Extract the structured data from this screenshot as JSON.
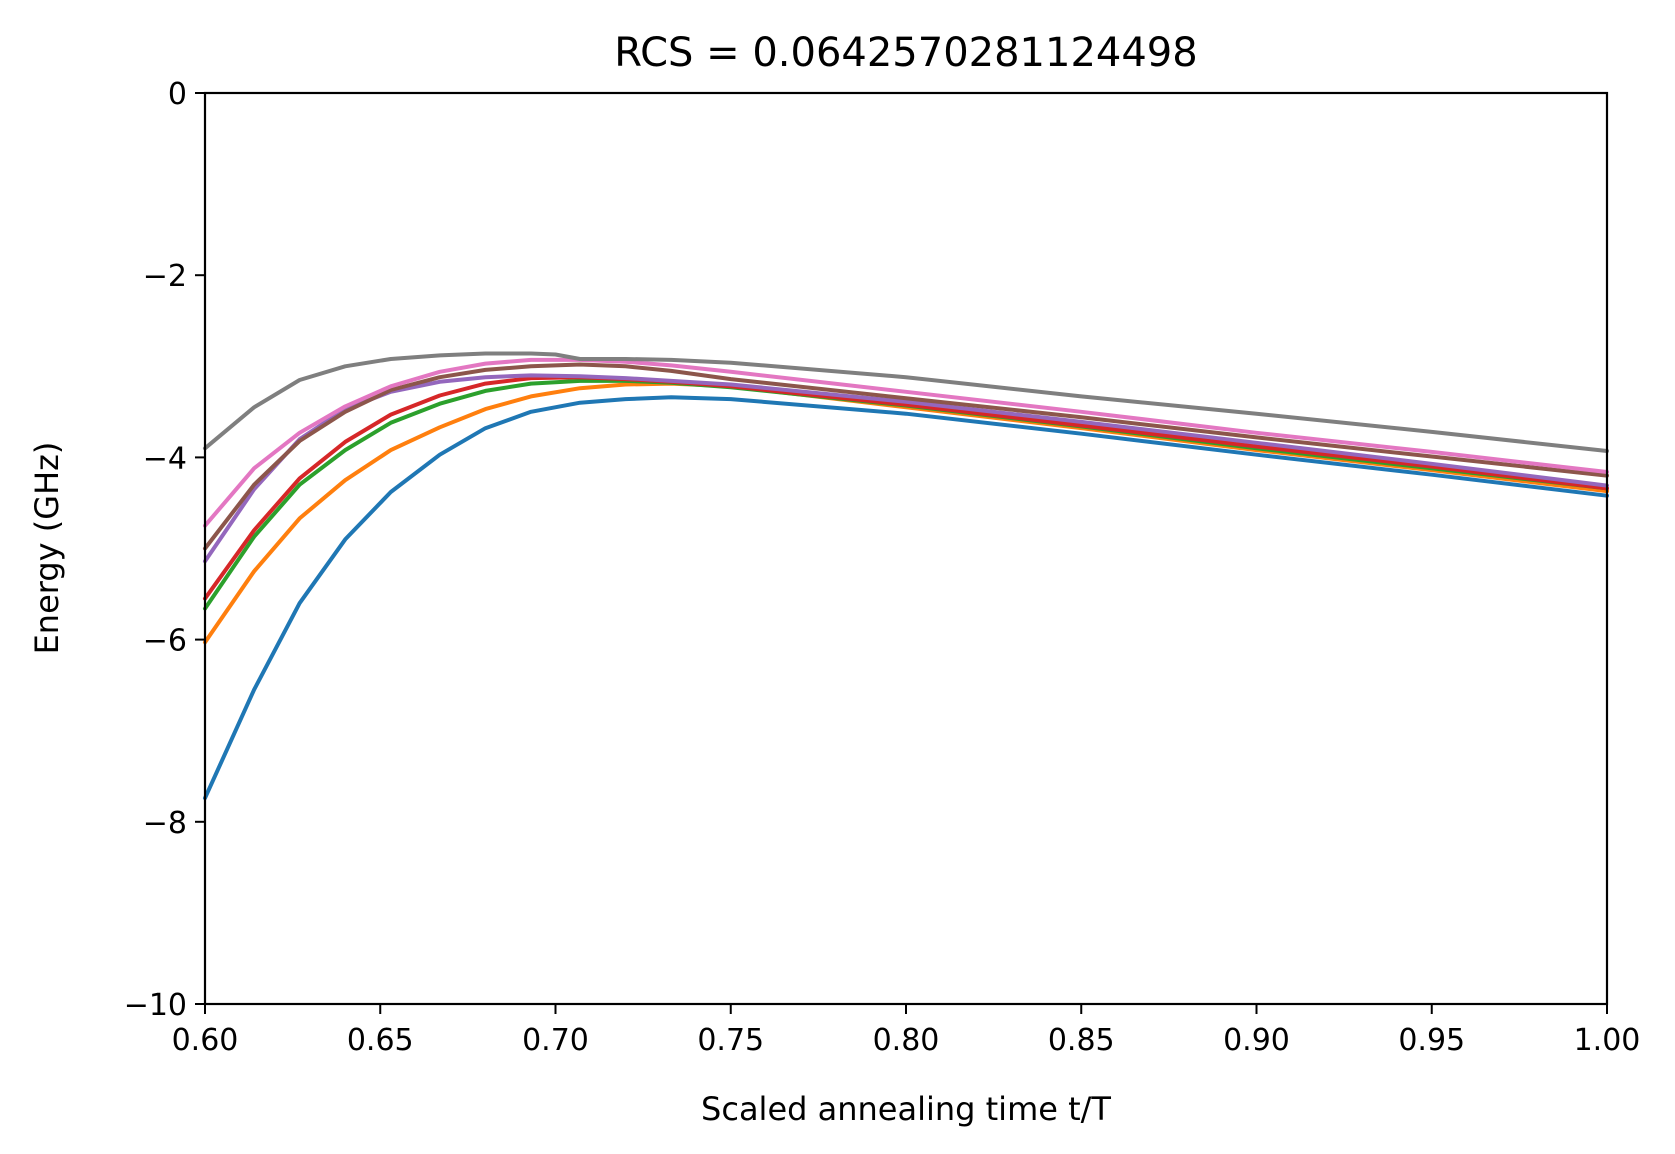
{
  "chart_data": {
    "type": "line",
    "title": "RCS = 0.0642570281124498",
    "xlabel": "Scaled annealing time t/T",
    "ylabel": "Energy (GHz)",
    "xlim": [
      0.6,
      1.0
    ],
    "ylim": [
      -10,
      0
    ],
    "xticks": [
      0.6,
      0.65,
      0.7,
      0.75,
      0.8,
      0.85,
      0.9,
      0.95,
      1.0
    ],
    "xtick_labels": [
      "0.60",
      "0.65",
      "0.70",
      "0.75",
      "0.80",
      "0.85",
      "0.90",
      "0.95",
      "1.00"
    ],
    "yticks": [
      -10,
      -8,
      -6,
      -4,
      -2,
      0
    ],
    "ytick_labels": [
      "−10",
      "−8",
      "−6",
      "−4",
      "−2",
      "0"
    ],
    "grid": false,
    "legend": false,
    "series": [
      {
        "color": "#1f77b4",
        "x": [
          0.6,
          0.614,
          0.627,
          0.64,
          0.653,
          0.667,
          0.68,
          0.693,
          0.707,
          0.72,
          0.733,
          0.75,
          0.8,
          0.85,
          0.9,
          0.95,
          1.0
        ],
        "y": [
          -7.74,
          -6.55,
          -5.6,
          -4.9,
          -4.38,
          -3.97,
          -3.68,
          -3.5,
          -3.4,
          -3.36,
          -3.34,
          -3.36,
          -3.52,
          -3.74,
          -3.97,
          -4.19,
          -4.42
        ]
      },
      {
        "color": "#ff7f0e",
        "x": [
          0.6,
          0.614,
          0.627,
          0.64,
          0.653,
          0.667,
          0.68,
          0.693,
          0.707,
          0.72,
          0.733,
          0.75,
          0.8,
          0.85,
          0.9,
          0.95,
          1.0
        ],
        "y": [
          -6.03,
          -5.25,
          -4.67,
          -4.25,
          -3.92,
          -3.67,
          -3.47,
          -3.33,
          -3.24,
          -3.2,
          -3.19,
          -3.22,
          -3.45,
          -3.68,
          -3.92,
          -4.14,
          -4.37
        ]
      },
      {
        "color": "#2ca02c",
        "x": [
          0.6,
          0.614,
          0.627,
          0.64,
          0.653,
          0.667,
          0.68,
          0.693,
          0.707,
          0.72,
          0.733,
          0.75,
          0.8,
          0.85,
          0.9,
          0.95,
          1.0
        ],
        "y": [
          -5.66,
          -4.87,
          -4.3,
          -3.92,
          -3.62,
          -3.41,
          -3.27,
          -3.19,
          -3.16,
          -3.16,
          -3.18,
          -3.23,
          -3.43,
          -3.66,
          -3.9,
          -4.12,
          -4.34
        ]
      },
      {
        "color": "#d62728",
        "x": [
          0.6,
          0.614,
          0.627,
          0.64,
          0.653,
          0.667,
          0.68,
          0.693,
          0.707,
          0.72,
          0.733,
          0.75,
          0.8,
          0.85,
          0.9,
          0.95,
          1.0
        ],
        "y": [
          -5.55,
          -4.8,
          -4.23,
          -3.83,
          -3.53,
          -3.32,
          -3.19,
          -3.13,
          -3.12,
          -3.14,
          -3.17,
          -3.22,
          -3.42,
          -3.65,
          -3.88,
          -4.1,
          -4.34
        ]
      },
      {
        "color": "#9467bd",
        "x": [
          0.6,
          0.614,
          0.627,
          0.64,
          0.653,
          0.667,
          0.68,
          0.693,
          0.707,
          0.72,
          0.733,
          0.75,
          0.8,
          0.85,
          0.9,
          0.95,
          1.0
        ],
        "y": [
          -5.14,
          -4.35,
          -3.8,
          -3.47,
          -3.28,
          -3.17,
          -3.12,
          -3.1,
          -3.11,
          -3.13,
          -3.16,
          -3.2,
          -3.39,
          -3.61,
          -3.84,
          -4.07,
          -4.31
        ]
      },
      {
        "color": "#8c564b",
        "x": [
          0.6,
          0.614,
          0.627,
          0.64,
          0.653,
          0.667,
          0.68,
          0.693,
          0.707,
          0.72,
          0.733,
          0.75,
          0.8,
          0.85,
          0.9,
          0.95,
          1.0
        ],
        "y": [
          -5.0,
          -4.3,
          -3.82,
          -3.5,
          -3.26,
          -3.12,
          -3.04,
          -3.0,
          -2.98,
          -3.0,
          -3.05,
          -3.14,
          -3.35,
          -3.56,
          -3.78,
          -3.99,
          -4.2
        ]
      },
      {
        "color": "#e377c2",
        "x": [
          0.6,
          0.614,
          0.627,
          0.64,
          0.653,
          0.667,
          0.68,
          0.693,
          0.707,
          0.72,
          0.733,
          0.75,
          0.8,
          0.85,
          0.9,
          0.95,
          1.0
        ],
        "y": [
          -4.75,
          -4.12,
          -3.73,
          -3.44,
          -3.22,
          -3.06,
          -2.97,
          -2.93,
          -2.93,
          -2.95,
          -2.99,
          -3.06,
          -3.28,
          -3.5,
          -3.73,
          -3.94,
          -4.16
        ]
      },
      {
        "color": "#7f7f7f",
        "x": [
          0.6,
          0.614,
          0.627,
          0.64,
          0.653,
          0.667,
          0.68,
          0.693,
          0.7,
          0.707,
          0.72,
          0.733,
          0.75,
          0.8,
          0.85,
          0.9,
          0.95,
          1.0
        ],
        "y": [
          -3.9,
          -3.45,
          -3.15,
          -3.0,
          -2.92,
          -2.88,
          -2.86,
          -2.86,
          -2.87,
          -2.92,
          -2.92,
          -2.93,
          -2.96,
          -3.12,
          -3.33,
          -3.52,
          -3.72,
          -3.93
        ]
      }
    ]
  }
}
